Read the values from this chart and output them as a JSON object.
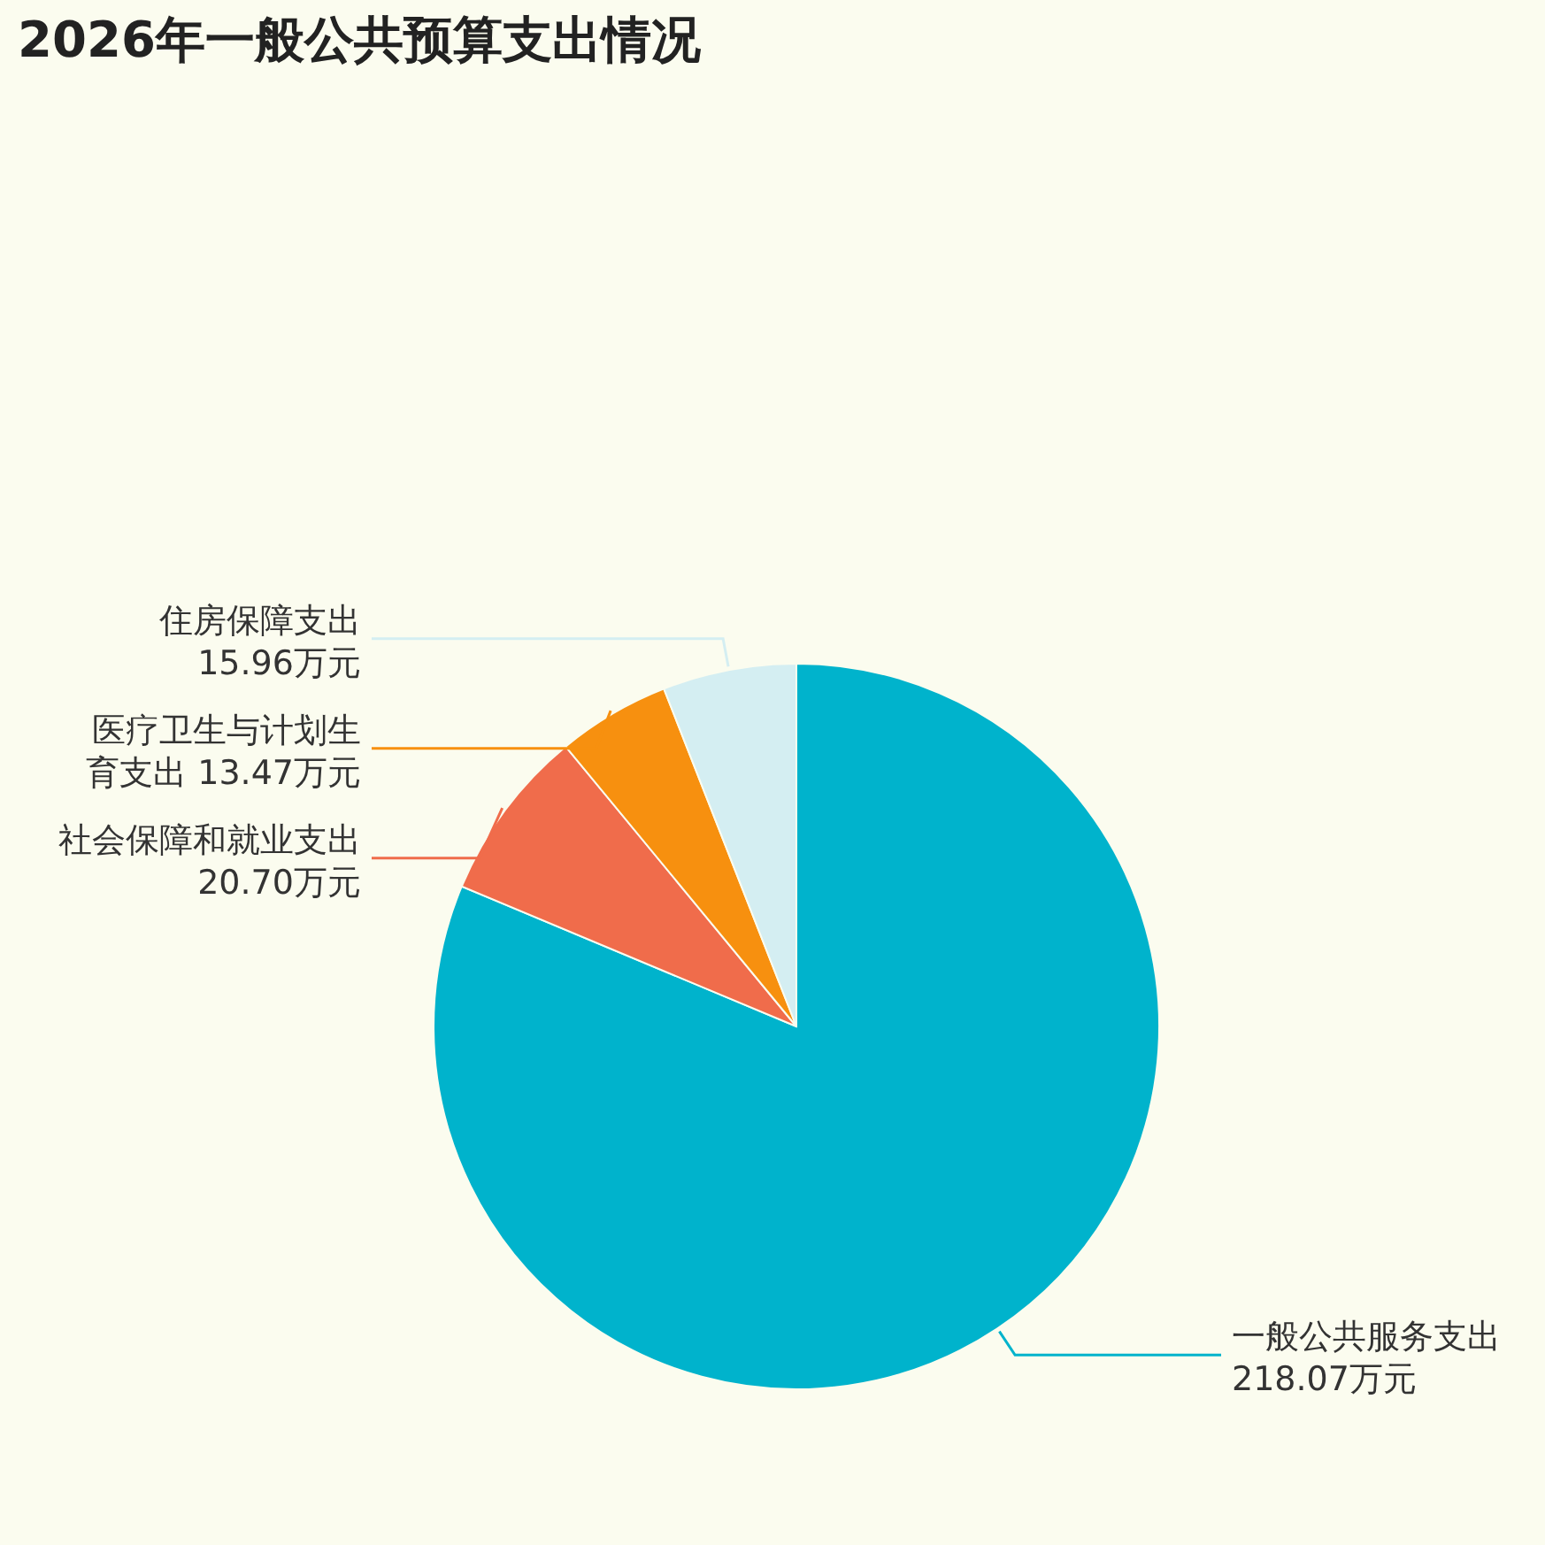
{
  "chart_data": {
    "type": "pie",
    "title": "2026年一般公共预算支出情况",
    "categories": [
      "一般公共服务支出",
      "社会保障和就业支出",
      "医疗卫生与计划生育支出",
      "住房保障支出"
    ],
    "values": [
      218.07,
      20.7,
      13.47,
      15.96
    ],
    "value_labels": [
      "218.07万元",
      "20.70万元",
      "13.47万元",
      "15.96万元"
    ],
    "colors": [
      "#00b3cc",
      "#f06c4b",
      "#f7900f",
      "#d4eef2"
    ],
    "legend": false
  }
}
